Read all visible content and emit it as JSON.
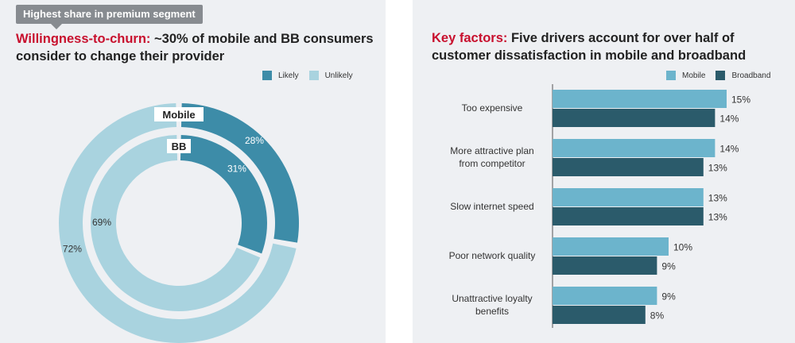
{
  "left": {
    "badge": "Highest share in premium segment",
    "title_accent": "Willingness-to-churn:",
    "title_rest": " ~30% of mobile and BB consumers consider to change their provider",
    "legend": [
      {
        "label": "Likely",
        "color": "#3d8ca8"
      },
      {
        "label": "Unlikely",
        "color": "#a9d3df"
      }
    ]
  },
  "right": {
    "title_accent": "Key factors:",
    "title_rest": " Five drivers account for over half of customer dissatisfaction in mobile and broadband",
    "legend": [
      {
        "label": "Mobile",
        "color": "#6cb4cc"
      },
      {
        "label": "Broadband",
        "color": "#2b5b6b"
      }
    ]
  },
  "chart_data": [
    {
      "type": "pie",
      "variant": "nested-donut",
      "series": [
        {
          "name": "Mobile",
          "categories": [
            "Likely",
            "Unlikely"
          ],
          "values": [
            28,
            72
          ],
          "labels": [
            "28%",
            "72%"
          ]
        },
        {
          "name": "BB",
          "categories": [
            "Likely",
            "Unlikely"
          ],
          "values": [
            31,
            69
          ],
          "labels": [
            "31%",
            "69%"
          ]
        }
      ],
      "colors": {
        "Likely": "#3d8ca8",
        "Unlikely": "#a9d3df"
      },
      "legend": "top-right"
    },
    {
      "type": "bar",
      "orientation": "horizontal",
      "categories": [
        [
          "Too expensive"
        ],
        [
          "More attractive plan",
          "from competitor"
        ],
        [
          "Slow internet speed"
        ],
        [
          "Poor network quality"
        ],
        [
          "Unattractive loyalty",
          "benefits"
        ]
      ],
      "series": [
        {
          "name": "Mobile",
          "values": [
            15,
            14,
            13,
            10,
            9
          ],
          "labels": [
            "15%",
            "14%",
            "13%",
            "10%",
            "9%"
          ],
          "color": "#6cb4cc"
        },
        {
          "name": "Broadband",
          "values": [
            14,
            13,
            13,
            9,
            8
          ],
          "labels": [
            "14%",
            "13%",
            "13%",
            "9%",
            "8%"
          ],
          "color": "#2b5b6b"
        }
      ],
      "xlim": [
        0,
        15
      ],
      "grid": false,
      "legend": "top-right"
    }
  ]
}
